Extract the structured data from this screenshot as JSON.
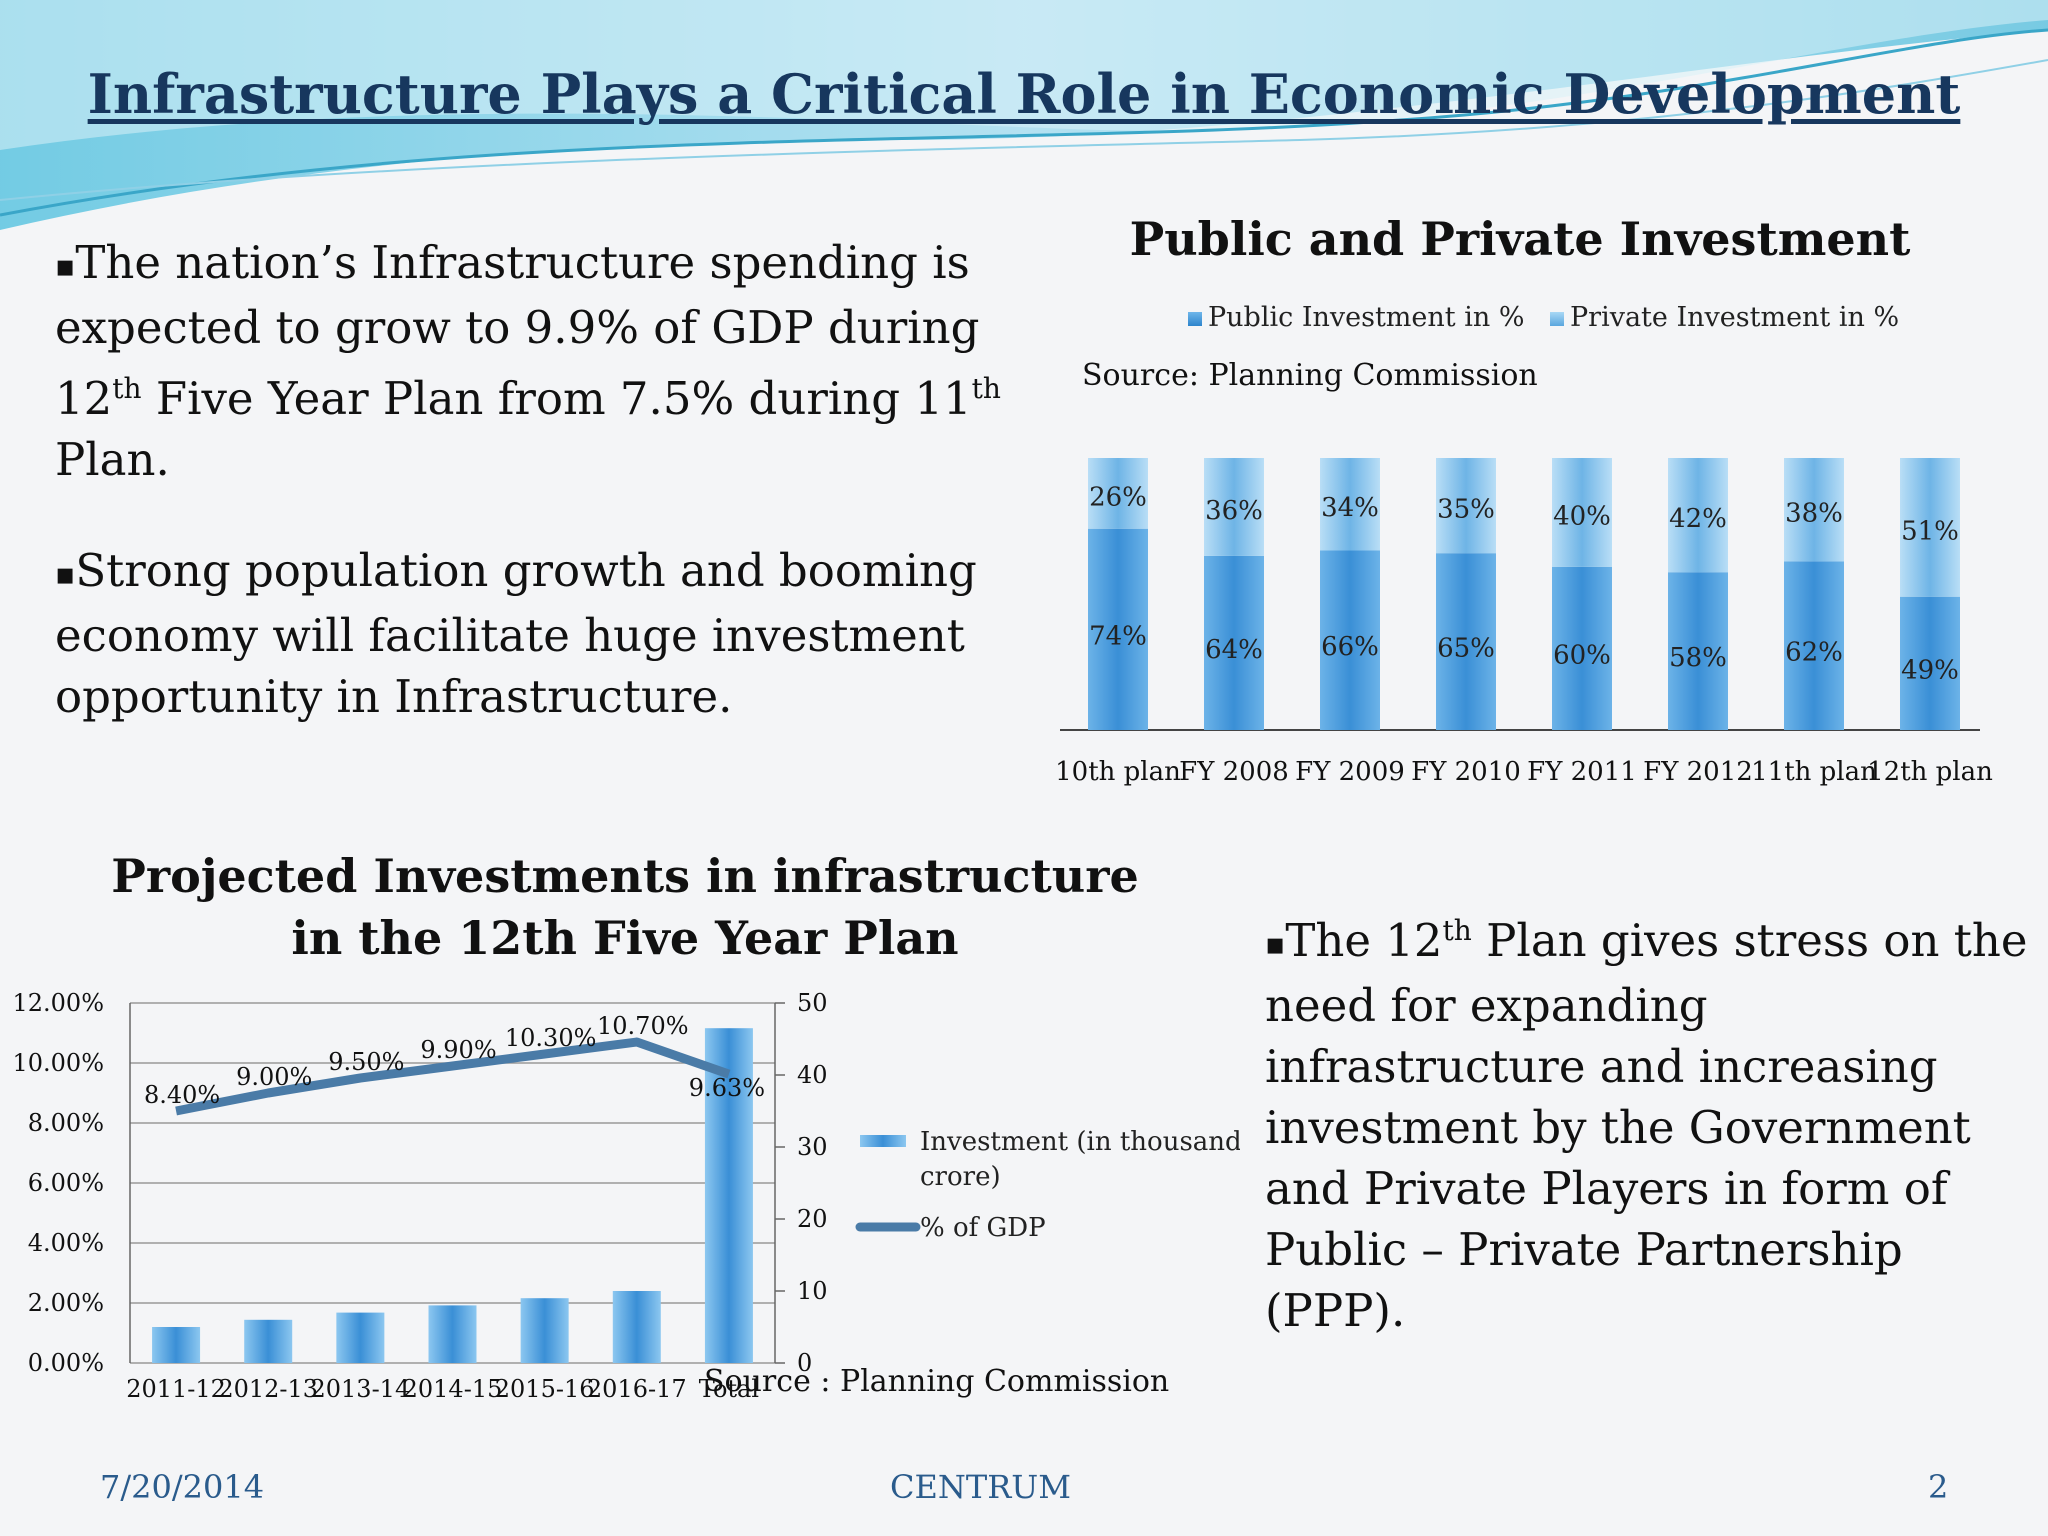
{
  "title": "Infrastructure Plays  a Critical Role in Economic Development",
  "bullets": {
    "b1": {
      "marker": "▪",
      "l1": "The nation’s Infrastructure spending is",
      "l2": "expected to grow to 9.9% of GDP during",
      "n1": "12",
      "s1": "th",
      "mid": " Five Year Plan from 7.5% during 11",
      "s2": "th",
      "l4": "Plan."
    },
    "b2": {
      "marker": "▪",
      "text": "Strong population growth and booming\neconomy will facilitate huge investment\nopportunity in Infrastructure."
    },
    "b3": {
      "marker": "▪",
      "pre": "The 12",
      "sup": "th",
      "post": " Plan gives stress on the",
      "rest": "need for expanding\ninfrastructure and increasing\ninvestment by the Government\nand Private Players in form of\nPublic – Private Partnership\n(PPP)."
    }
  },
  "footer": {
    "date": "7/20/2014",
    "center": "CENTRUM",
    "page": "2"
  },
  "chart_data": [
    {
      "type": "bar",
      "stacked": true,
      "title": "Public and Private Investment",
      "source": "Source: Planning Commission",
      "categories": [
        "10th plan",
        "FY 2008",
        "FY 2009",
        "FY 2010",
        "FY 2011",
        "FY 2012",
        "11th plan",
        "12th plan"
      ],
      "series": [
        {
          "name": "Public Investment in %",
          "values": [
            74,
            64,
            66,
            65,
            60,
            58,
            62,
            49
          ],
          "labels": [
            "74%",
            "64%",
            "66%",
            "65%",
            "60%",
            "58%",
            "62%",
            "49%"
          ]
        },
        {
          "name": "Private Investment in %",
          "values": [
            26,
            36,
            34,
            35,
            40,
            42,
            38,
            51
          ],
          "labels": [
            "26%",
            "36%",
            "34%",
            "35%",
            "40%",
            "42%",
            "38%",
            "51%"
          ]
        }
      ],
      "ylim": [
        0,
        100
      ],
      "colors": {
        "public": "#3a8fd6",
        "private": "#8fc6ef"
      }
    },
    {
      "type": "bar",
      "title": "Projected Investments in infrastructure\nin the 12th Five Year Plan",
      "source": "Source : Planning Commission",
      "categories": [
        "2011-12",
        "2012-13",
        "2013-14",
        "2014-15",
        "2015-16",
        "2016-17",
        "Total"
      ],
      "series": [
        {
          "name": "Investment (in thousand crore)",
          "axis": "right",
          "values": [
            5,
            6,
            7,
            8,
            9,
            10,
            46.5
          ]
        },
        {
          "name": "% of GDP",
          "axis": "left",
          "type": "line",
          "values": [
            8.4,
            9.0,
            9.5,
            9.9,
            10.3,
            10.7,
            9.63
          ],
          "labels": [
            "8.40%",
            "9.00%",
            "9.50%",
            "9.90%",
            "10.30%",
            "10.70%",
            "9.63%"
          ]
        }
      ],
      "left_axis": {
        "ticks": [
          "0.00%",
          "2.00%",
          "4.00%",
          "6.00%",
          "8.00%",
          "10.00%",
          "12.00%"
        ],
        "ylim": [
          0,
          12
        ]
      },
      "right_axis": {
        "ticks": [
          "0",
          "10",
          "20",
          "30",
          "40",
          "50"
        ],
        "ylim": [
          0,
          50
        ]
      },
      "legend": {
        "bar_line1": "Investment (in thousand",
        "bar_line2": "crore)",
        "line": "% of GDP"
      },
      "colors": {
        "bar": "#3a8fd6",
        "line": "#4a7ba7"
      }
    }
  ]
}
